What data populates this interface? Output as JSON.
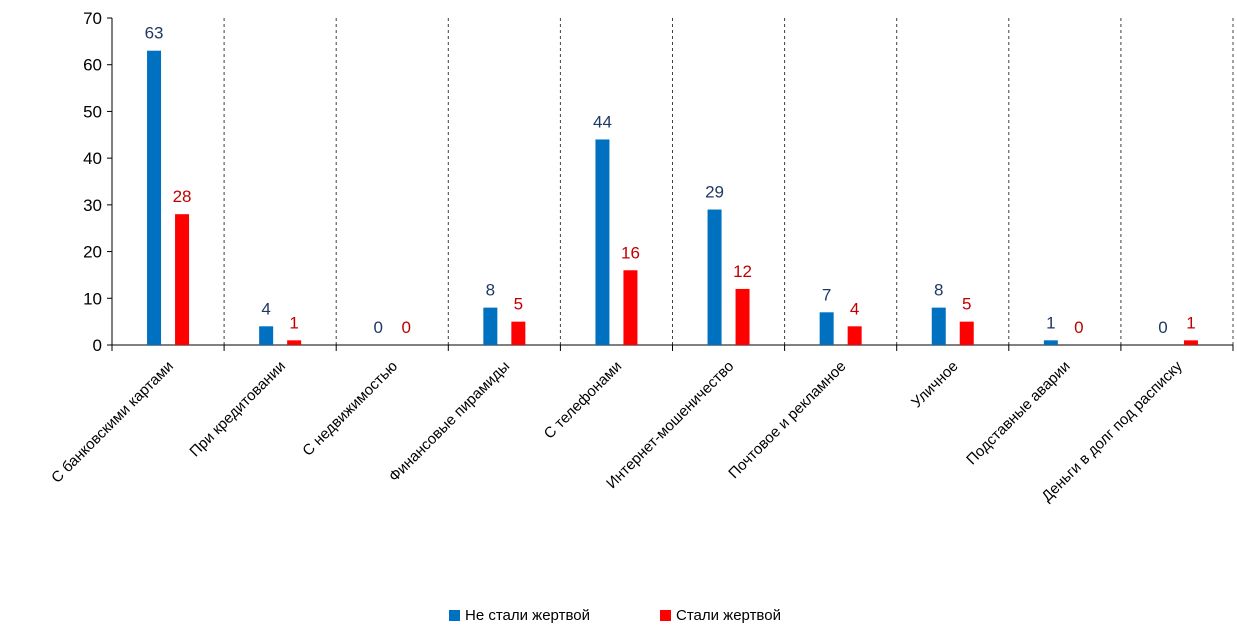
{
  "chart_data": {
    "type": "bar",
    "categories": [
      "С банковскими картами",
      "При кредитовании",
      "С недвижимостью",
      "Финансовые пирамиды",
      "С телефонами",
      "Интернет-мошеничество",
      "Почтовое и рекламное",
      "Уличное",
      "Подставные аварии",
      "Деньги в долг под расписку"
    ],
    "series": [
      {
        "name": "Не стали жертвой",
        "color": "#0070C0",
        "label_color": "#1F3864",
        "values": [
          63,
          4,
          0,
          8,
          44,
          29,
          7,
          8,
          1,
          0
        ]
      },
      {
        "name": "Стали жертвой",
        "color": "#FF0000",
        "label_color": "#C00000",
        "values": [
          28,
          1,
          0,
          5,
          16,
          12,
          4,
          5,
          0,
          1
        ]
      }
    ],
    "title": "",
    "xlabel": "",
    "ylabel": "",
    "ylim": [
      0,
      70
    ],
    "yticks": [
      0,
      10,
      20,
      30,
      40,
      50,
      60,
      70
    ],
    "grid": "vertical-dashed-between-categories",
    "legend_position": "bottom"
  }
}
